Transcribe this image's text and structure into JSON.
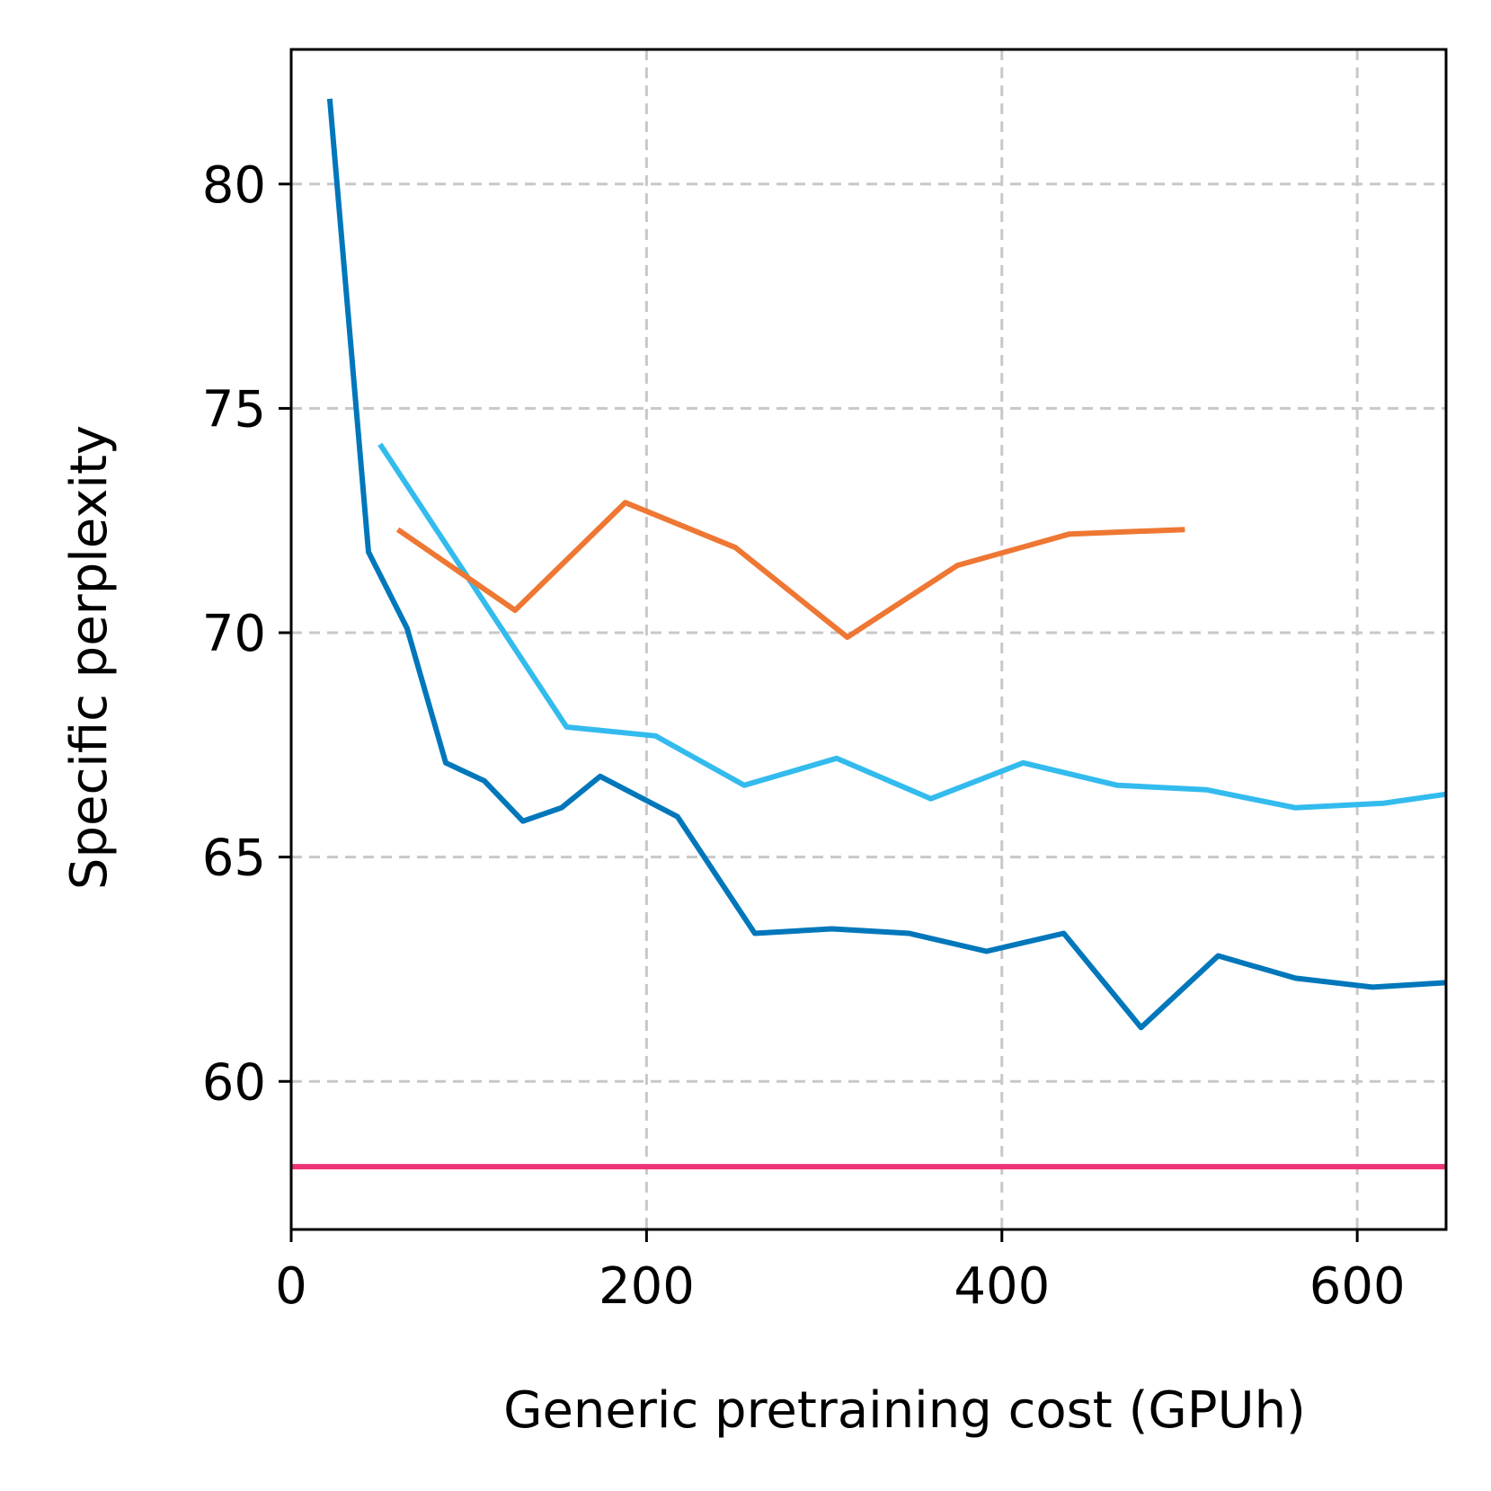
{
  "chart_data": {
    "type": "line",
    "title": "",
    "xlabel": "Generic pretraining cost (GPUh)",
    "ylabel": "Specific perplexity",
    "xlim": [
      0,
      650
    ],
    "ylim": [
      56.7,
      83.0
    ],
    "xticks": [
      0,
      200,
      400,
      600
    ],
    "yticks": [
      60,
      65,
      70,
      75,
      80
    ],
    "grid": true,
    "grid_style": "dashed",
    "legend": "none",
    "series": [
      {
        "color": "#0077bb",
        "x": [
          21.7,
          43.5,
          65.2,
          87,
          108.7,
          130.4,
          152.2,
          173.9,
          217.4,
          260.9,
          304.3,
          347.8,
          391.3,
          434.8,
          478.3,
          521.7,
          565.2,
          608.7,
          650
        ],
        "y": [
          81.9,
          71.8,
          70.1,
          67.1,
          66.7,
          65.8,
          66.1,
          66.8,
          65.9,
          63.3,
          63.4,
          63.3,
          62.9,
          63.3,
          61.2,
          62.8,
          62.3,
          62.1,
          62.2
        ]
      },
      {
        "color": "#33bbee",
        "x": [
          50,
          155,
          205,
          255,
          307,
          360,
          412,
          465,
          515,
          565,
          615,
          650
        ],
        "y": [
          74.2,
          67.9,
          67.7,
          66.6,
          67.2,
          66.3,
          67.1,
          66.6,
          66.5,
          66.1,
          66.2,
          66.4
        ]
      },
      {
        "color": "#ee7733",
        "x": [
          60,
          126,
          188,
          250,
          313,
          375,
          438,
          503
        ],
        "y": [
          72.3,
          70.5,
          72.9,
          71.9,
          69.9,
          71.5,
          72.2,
          72.3
        ]
      },
      {
        "color": "#ee3377",
        "x": [
          0,
          650
        ],
        "y": [
          58.1,
          58.1
        ]
      }
    ]
  }
}
